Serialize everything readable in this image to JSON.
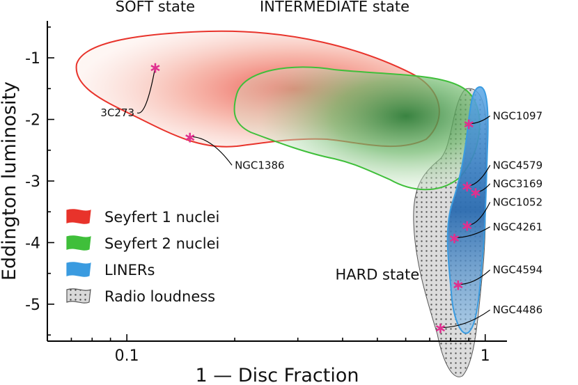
{
  "chart_data": {
    "type": "scatter",
    "x_scale": "log",
    "xlabel": "1 —  Disc Fraction",
    "ylabel": "Eddington luminosity",
    "xlim": [
      0.06,
      1.15
    ],
    "ylim": [
      -5.6,
      -0.4
    ],
    "x_ticks": [
      {
        "value": 0.1,
        "label": "0.1"
      },
      {
        "value": 1,
        "label": "1"
      }
    ],
    "y_ticks": [
      {
        "value": -1,
        "label": "-1"
      },
      {
        "value": -2,
        "label": "-2"
      },
      {
        "value": -3,
        "label": "-3"
      },
      {
        "value": -4,
        "label": "-4"
      },
      {
        "value": -5,
        "label": "-5"
      }
    ],
    "region_labels": [
      {
        "text": "SOFT state",
        "x": 0.12,
        "y": -0.25
      },
      {
        "text": "INTERMEDIATE state",
        "x": 0.38,
        "y": -0.25
      },
      {
        "text": "HARD state",
        "x": 0.5,
        "y": -4.6
      }
    ],
    "density_regions": [
      {
        "name": "Seyfert 1 nuclei",
        "color": "#e8332b",
        "fill": "#f3a08f"
      },
      {
        "name": "Seyfert 2 nuclei",
        "color": "#3fbf3a",
        "fill": "#8fcf86"
      },
      {
        "name": "LINERs",
        "color": "#3a9be0",
        "fill": "#3a78c0"
      },
      {
        "name": "Radio loudness",
        "color": "#555555",
        "fill": "#cfcfcf"
      }
    ],
    "points": [
      {
        "name": "3C273",
        "x": 0.12,
        "y": -1.15,
        "label_x": 0.105,
        "label_y": -1.95
      },
      {
        "name": "NGC1386",
        "x": 0.15,
        "y": -2.28,
        "label_x": 0.2,
        "label_y": -2.8
      },
      {
        "name": "NGC1097",
        "x": 0.9,
        "y": -2.07,
        "label_x": 1.05,
        "label_y": -2.0
      },
      {
        "name": "NGC4579",
        "x": 0.89,
        "y": -3.08,
        "label_x": 1.05,
        "label_y": -2.8
      },
      {
        "name": "NGC3169",
        "x": 0.94,
        "y": -3.18,
        "label_x": 1.05,
        "label_y": -3.1
      },
      {
        "name": "NGC1052",
        "x": 0.89,
        "y": -3.72,
        "label_x": 1.05,
        "label_y": -3.4
      },
      {
        "name": "NGC4261",
        "x": 0.82,
        "y": -3.92,
        "label_x": 1.05,
        "label_y": -3.8
      },
      {
        "name": "NGC4594",
        "x": 0.84,
        "y": -4.68,
        "label_x": 1.05,
        "label_y": -4.5
      },
      {
        "name": "NGC4486",
        "x": 0.75,
        "y": -5.38,
        "label_x": 1.05,
        "label_y": -5.15
      }
    ],
    "legend": {
      "position": "lower-left",
      "entries": [
        "Seyfert 1 nuclei",
        "Seyfert 2 nuclei",
        "LINERs",
        "Radio loudness"
      ]
    }
  }
}
